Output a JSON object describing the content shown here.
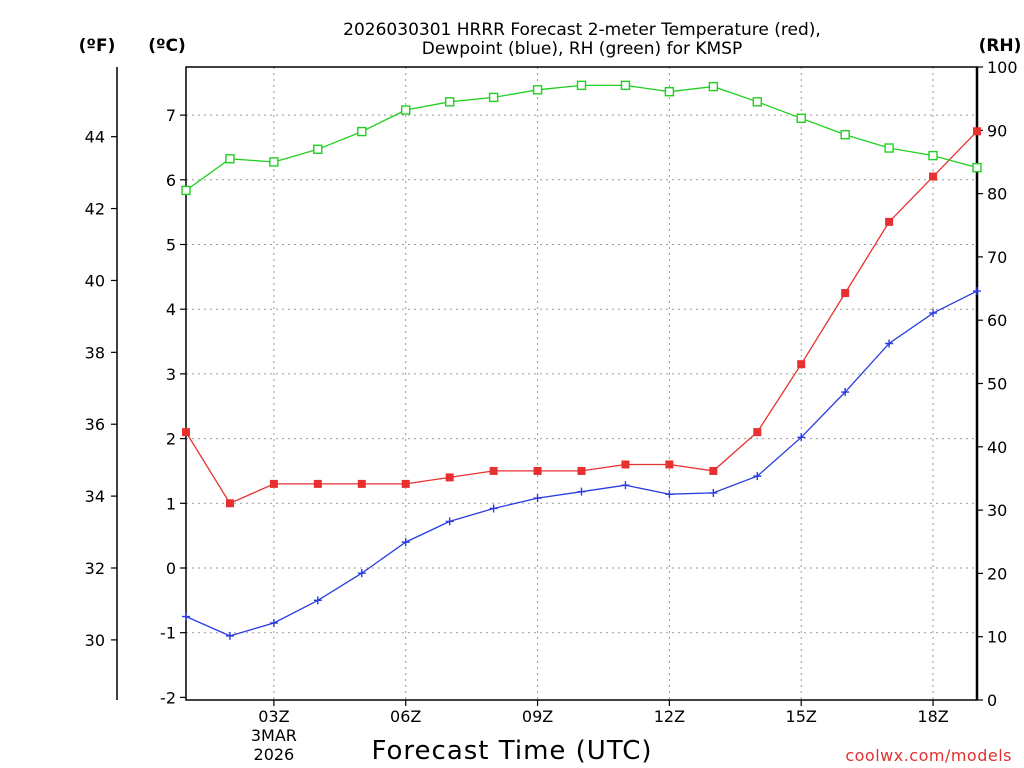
{
  "chart_data": {
    "type": "line",
    "title_line1": "2026030301 HRRR Forecast 2-meter Temperature (red),",
    "title_line2": "Dewpoint (blue), RH (green) for KMSP",
    "xlabel": "Forecast Time (UTC)",
    "credit": "coolwx.com/models",
    "units": {
      "fahrenheit": "(ºF)",
      "celsius": "(ºC)",
      "rh": "(RH)"
    },
    "x": [
      1,
      2,
      3,
      4,
      5,
      6,
      7,
      8,
      9,
      10,
      11,
      12,
      13,
      14,
      15,
      16,
      17,
      18,
      19
    ],
    "xlim": [
      1,
      19
    ],
    "x_ticks": [
      {
        "x": 3,
        "label": "03Z",
        "date1": "3MAR",
        "date2": "2026"
      },
      {
        "x": 6,
        "label": "06Z"
      },
      {
        "x": 9,
        "label": "09Z"
      },
      {
        "x": 12,
        "label": "12Z"
      },
      {
        "x": 15,
        "label": "15Z"
      },
      {
        "x": 18,
        "label": "18Z"
      }
    ],
    "y_celsius": {
      "range": [
        -2,
        7.8
      ],
      "ticks": [
        -2,
        -1,
        0,
        1,
        2,
        3,
        4,
        5,
        6,
        7
      ]
    },
    "y_fahrenheit": {
      "ticks": [
        30,
        32,
        34,
        36,
        38,
        40,
        42,
        44
      ]
    },
    "y_rh": {
      "range": [
        0,
        100
      ],
      "ticks": [
        0,
        10,
        20,
        30,
        40,
        50,
        60,
        70,
        80,
        90,
        100
      ]
    },
    "series": [
      {
        "name": "Temperature",
        "color": "#e83030",
        "axis": "celsius",
        "marker": "filled-square",
        "values": [
          2.1,
          1.0,
          1.3,
          1.3,
          1.3,
          1.3,
          1.4,
          1.5,
          1.5,
          1.5,
          1.6,
          1.6,
          1.5,
          2.1,
          3.15,
          4.25,
          5.35,
          6.05,
          6.75
        ]
      },
      {
        "name": "Dewpoint",
        "color": "#2a3ce0",
        "axis": "celsius",
        "marker": "plus",
        "values": [
          -0.75,
          -1.05,
          -0.85,
          -0.5,
          -0.08,
          0.4,
          0.72,
          0.92,
          1.08,
          1.18,
          1.28,
          1.14,
          1.16,
          1.42,
          2.02,
          2.72,
          3.47,
          3.94,
          4.28
        ]
      },
      {
        "name": "RH",
        "color": "#20d020",
        "axis": "rh",
        "marker": "open-square",
        "values": [
          80.5,
          85.5,
          85.0,
          87.0,
          89.8,
          93.2,
          94.5,
          95.2,
          96.4,
          97.1,
          97.1,
          96.1,
          96.9,
          94.5,
          91.9,
          89.3,
          87.2,
          86.0,
          84.1
        ]
      }
    ]
  }
}
